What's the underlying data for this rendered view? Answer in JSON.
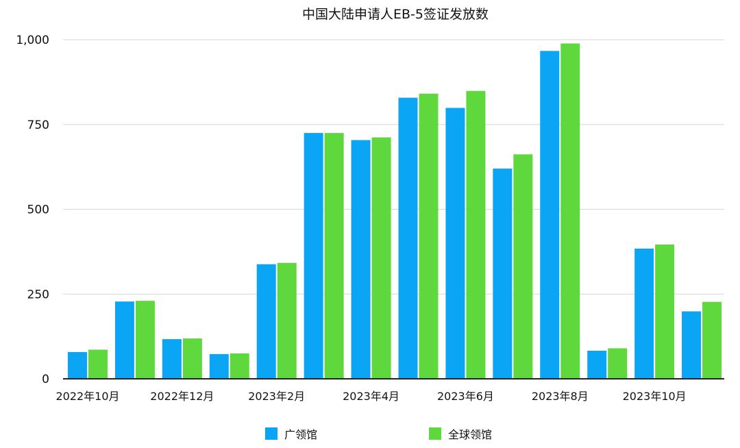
{
  "chart_data": {
    "type": "bar",
    "title": "中国大陆申请人EB-5签证发放数",
    "categories": [
      "2022年10月",
      "2022年11月",
      "2022年12月",
      "2023年1月",
      "2023年2月",
      "2023年3月",
      "2023年4月",
      "2023年5月",
      "2023年6月",
      "2023年7月",
      "2023年8月",
      "2023年9月",
      "2023年10月",
      "2023年11月"
    ],
    "x_tick_labels": [
      "2022年10月",
      "2022年12月",
      "2023年2月",
      "2023年4月",
      "2023年6月",
      "2023年8月",
      "2023年10月"
    ],
    "y_tick_labels": [
      "0",
      "250",
      "500",
      "750",
      "1,000"
    ],
    "y_ticks": [
      0,
      250,
      500,
      750,
      1000
    ],
    "ylim": [
      0,
      1000
    ],
    "grid": true,
    "legend_position": "bottom",
    "series": [
      {
        "name": "广领馆",
        "color": "#0aa5f5",
        "values": [
          79,
          228,
          117,
          73,
          338,
          725,
          704,
          829,
          799,
          620,
          967,
          83,
          384,
          199
        ]
      },
      {
        "name": "全球领馆",
        "color": "#5ed83c",
        "values": [
          86,
          230,
          119,
          75,
          342,
          725,
          712,
          841,
          849,
          662,
          989,
          90,
          396,
          227
        ]
      }
    ]
  }
}
